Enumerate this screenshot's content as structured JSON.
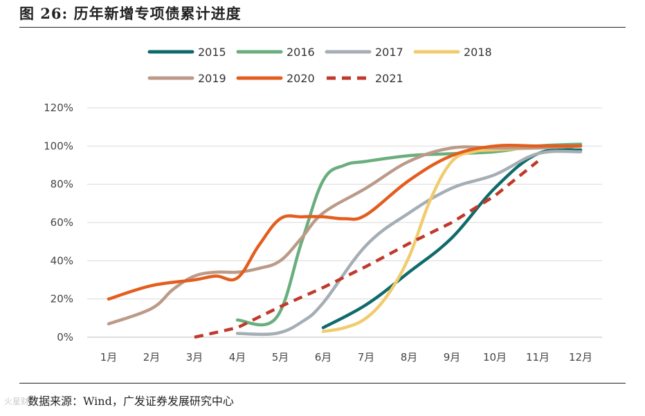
{
  "figure": {
    "title": "图 26: 历年新增专项债累计进度",
    "source": "数据来源：Wind，广发证券发展研究中心",
    "watermark": "火星财经"
  },
  "chart_data": {
    "type": "line",
    "title": "历年新增专项债累计进度",
    "xlabel": "",
    "ylabel": "",
    "categories": [
      "1月",
      "2月",
      "3月",
      "4月",
      "5月",
      "6月",
      "7月",
      "8月",
      "9月",
      "10月",
      "11月",
      "12月"
    ],
    "ylim": [
      0,
      120
    ],
    "yticks": [
      0,
      20,
      40,
      60,
      80,
      100,
      120
    ],
    "ytick_labels": [
      "0%",
      "20%",
      "40%",
      "60%",
      "80%",
      "100%",
      "120%"
    ],
    "grid": true,
    "legend_position": "top",
    "series": [
      {
        "name": "2015",
        "color": "#0f6b6b",
        "dashed": false,
        "x": [
          6,
          7,
          8,
          9,
          10,
          11,
          12
        ],
        "values": [
          5,
          17,
          34,
          52,
          78,
          96,
          98
        ]
      },
      {
        "name": "2016",
        "color": "#6aae7e",
        "dashed": false,
        "x": [
          4,
          4.9,
          5.5,
          6,
          6.5,
          7,
          8,
          9,
          10,
          11,
          12
        ],
        "values": [
          9,
          10,
          50,
          82,
          90,
          92,
          95,
          96,
          97,
          100,
          101
        ]
      },
      {
        "name": "2017",
        "color": "#a5aeb5",
        "dashed": false,
        "x": [
          4,
          4.9,
          5.5,
          6,
          7,
          8,
          9,
          10,
          11,
          12
        ],
        "values": [
          2,
          2,
          8,
          18,
          48,
          65,
          78,
          85,
          96,
          97
        ]
      },
      {
        "name": "2018",
        "color": "#f1cc6e",
        "dashed": false,
        "x": [
          6,
          6.5,
          7,
          7.5,
          8,
          8.5,
          9,
          9.5,
          10,
          11,
          12
        ],
        "values": [
          3,
          5,
          10,
          22,
          42,
          72,
          92,
          97,
          98,
          99,
          100
        ]
      },
      {
        "name": "2019",
        "color": "#bb9a88",
        "dashed": false,
        "x": [
          1,
          2,
          2.5,
          3,
          3.5,
          4,
          4.5,
          5,
          5.5,
          6,
          7,
          8,
          9,
          10,
          11,
          12
        ],
        "values": [
          7,
          15,
          25,
          32,
          34,
          34,
          36,
          40,
          52,
          65,
          78,
          92,
          99,
          99,
          99,
          100
        ]
      },
      {
        "name": "2020",
        "color": "#e35e1e",
        "dashed": false,
        "x": [
          1,
          2,
          3,
          3.5,
          4,
          4.5,
          5,
          5.5,
          6,
          6.5,
          7,
          8,
          9,
          10,
          11,
          12
        ],
        "values": [
          20,
          27,
          30,
          32,
          31,
          48,
          62,
          63,
          63,
          62,
          64,
          82,
          95,
          100,
          100,
          100
        ]
      },
      {
        "name": "2021",
        "color": "#c0392b",
        "dashed": true,
        "x": [
          3,
          4,
          5,
          6,
          7,
          8,
          9,
          10,
          11
        ],
        "values": [
          0,
          5,
          16,
          26,
          37,
          49,
          60,
          74,
          92
        ]
      }
    ]
  }
}
